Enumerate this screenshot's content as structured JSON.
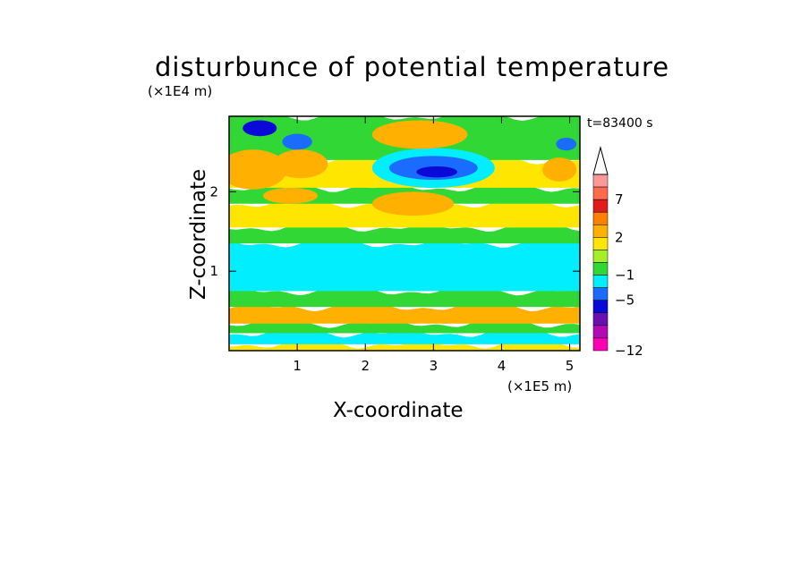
{
  "chart_data": {
    "type": "heatmap",
    "title": "disturbunce of potential temperature",
    "xlabel": "X-coordinate",
    "ylabel": "Z-coordinate",
    "x_unit": "(×1E5 m)",
    "y_unit": "(×1E4 m)",
    "annotation": "t=83400 s",
    "xlim": [
      0,
      5.15
    ],
    "ylim": [
      0,
      2.95
    ],
    "xticks": [
      "1",
      "2",
      "3",
      "4",
      "5"
    ],
    "yticks": [
      "1",
      "2"
    ],
    "grid": false,
    "colorbar": {
      "position": "right",
      "labels": [
        "7",
        "2",
        "−1",
        "−5",
        "−12"
      ],
      "colors": [
        "#ff9999",
        "#ff6a4d",
        "#e31a1c",
        "#ff7f00",
        "#ffb000",
        "#ffe600",
        "#a6ee25",
        "#31d835",
        "#00eeff",
        "#1a6cff",
        "#0a0ad8",
        "#6a0fb0",
        "#b40ab4",
        "#ff00b4"
      ]
    },
    "bands": [
      {
        "z": [
          0.0,
          0.08
        ],
        "level": "yellow"
      },
      {
        "z": [
          0.08,
          0.22
        ],
        "level": "cyan"
      },
      {
        "z": [
          0.22,
          0.34
        ],
        "level": "green"
      },
      {
        "z": [
          0.34,
          0.55
        ],
        "level": "orange"
      },
      {
        "z": [
          0.55,
          0.75
        ],
        "level": "green"
      },
      {
        "z": [
          0.75,
          1.35
        ],
        "level": "cyan"
      },
      {
        "z": [
          1.35,
          1.55
        ],
        "level": "green"
      },
      {
        "z": [
          1.55,
          1.85
        ],
        "level": "yellow"
      },
      {
        "z": [
          1.85,
          2.05
        ],
        "level": "green"
      },
      {
        "z": [
          2.05,
          2.4
        ],
        "level": "yellow"
      },
      {
        "z": [
          2.4,
          2.95
        ],
        "level": "green"
      }
    ],
    "features": [
      {
        "x": 0.35,
        "z": 2.28,
        "rx": 0.5,
        "rz": 0.25,
        "level": "orange"
      },
      {
        "x": 1.05,
        "z": 2.35,
        "rx": 0.4,
        "rz": 0.18,
        "level": "orange"
      },
      {
        "x": 3.0,
        "z": 2.3,
        "rx": 0.9,
        "rz": 0.25,
        "level": "cyan"
      },
      {
        "x": 3.0,
        "z": 2.3,
        "rx": 0.65,
        "rz": 0.15,
        "level": "blue"
      },
      {
        "x": 3.05,
        "z": 2.25,
        "rx": 0.3,
        "rz": 0.07,
        "level": "navy"
      },
      {
        "x": 0.45,
        "z": 2.8,
        "rx": 0.25,
        "rz": 0.1,
        "level": "navy"
      },
      {
        "x": 1.0,
        "z": 2.63,
        "rx": 0.22,
        "rz": 0.1,
        "level": "blue"
      },
      {
        "x": 4.95,
        "z": 2.6,
        "rx": 0.15,
        "rz": 0.08,
        "level": "blue"
      },
      {
        "x": 2.8,
        "z": 2.72,
        "rx": 0.7,
        "rz": 0.18,
        "level": "orange"
      },
      {
        "x": 4.85,
        "z": 2.28,
        "rx": 0.25,
        "rz": 0.15,
        "level": "orange"
      },
      {
        "x": 2.7,
        "z": 1.85,
        "rx": 0.6,
        "rz": 0.15,
        "level": "orange"
      },
      {
        "x": 0.9,
        "z": 1.95,
        "rx": 0.4,
        "rz": 0.1,
        "level": "orange"
      }
    ]
  }
}
